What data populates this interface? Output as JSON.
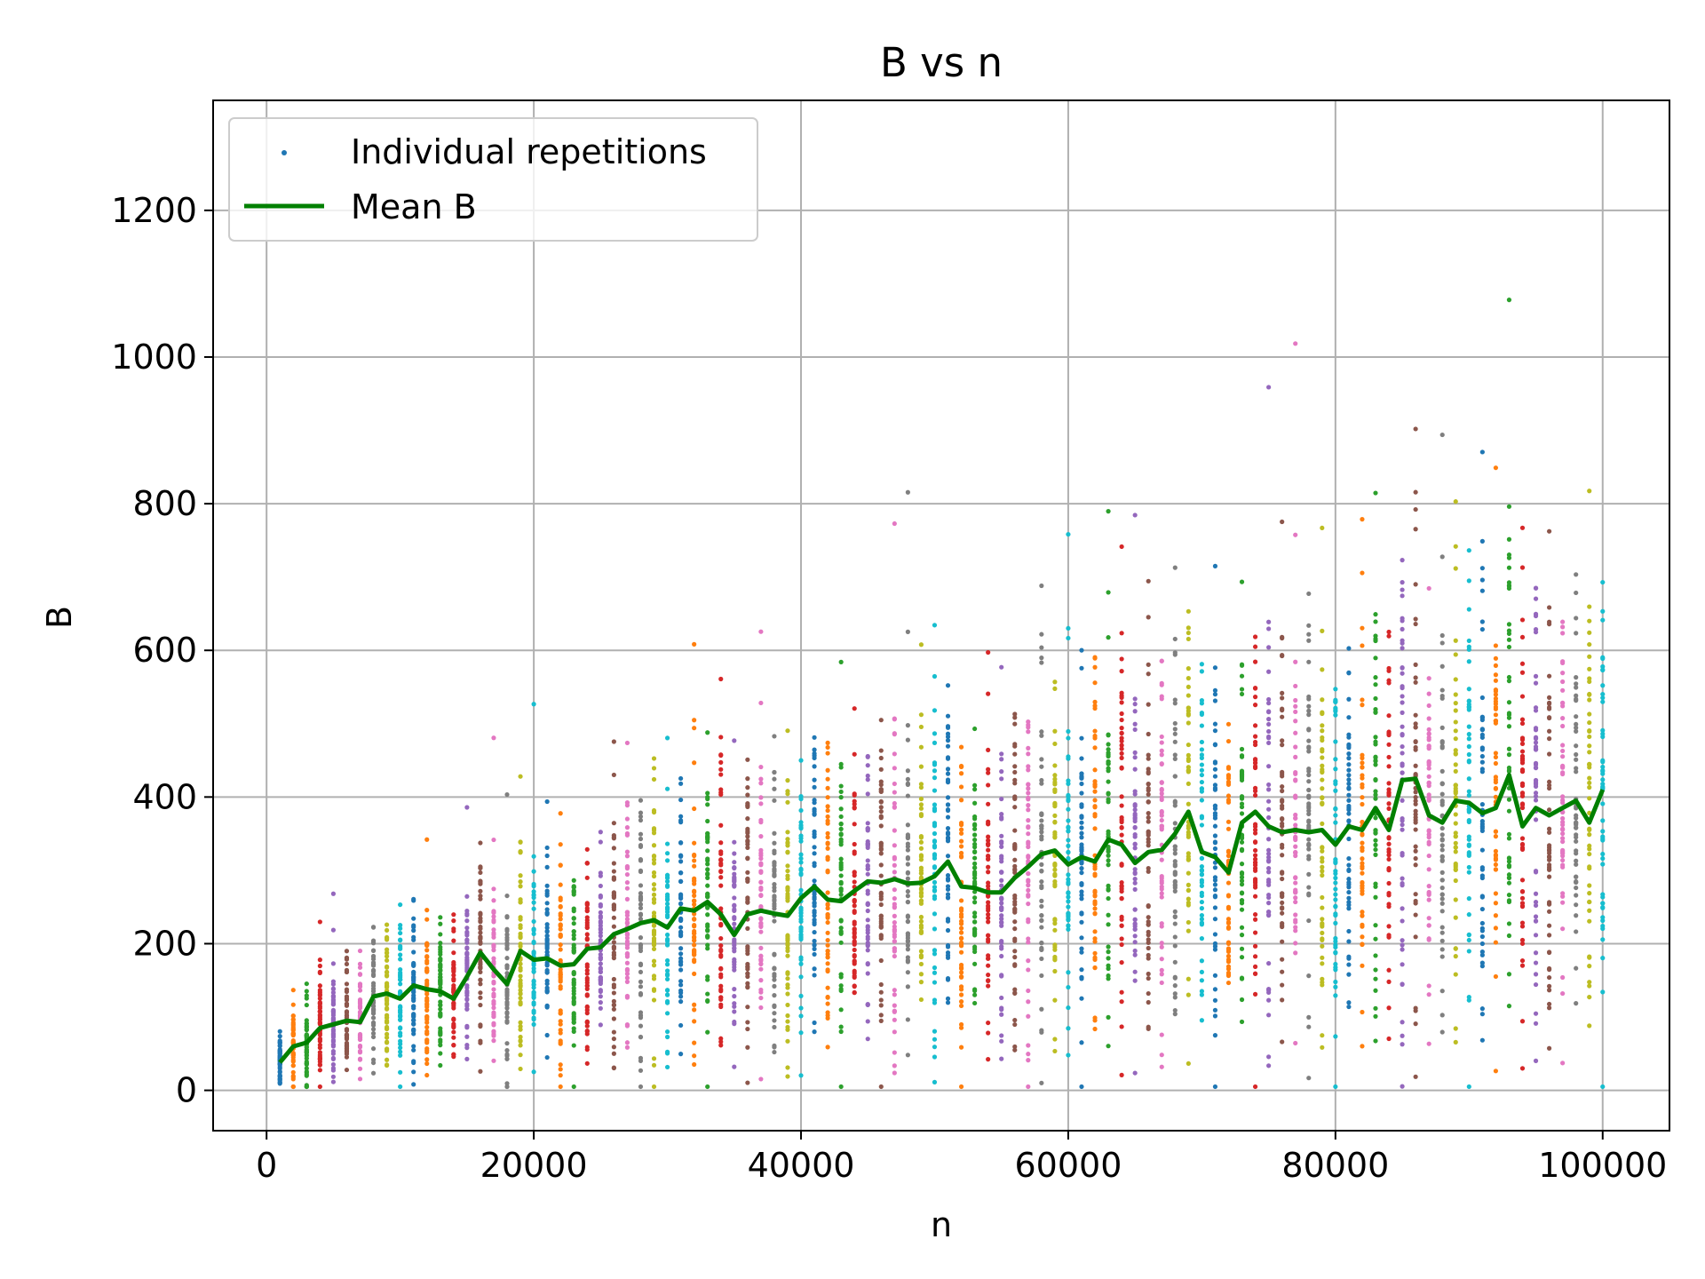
{
  "chart_data": {
    "type": "scatter",
    "title": "B vs n",
    "xlabel": "n",
    "ylabel": "B",
    "xlim": [
      -4000,
      105000
    ],
    "ylim": [
      -55,
      1350
    ],
    "xticks": [
      0,
      20000,
      40000,
      60000,
      80000,
      100000
    ],
    "yticks": [
      0,
      200,
      400,
      600,
      800,
      1000,
      1200
    ],
    "grid": true,
    "legend": {
      "placement": "top-left",
      "entries": [
        {
          "label": "Individual repetitions",
          "kind": "marker",
          "color": "#1f77b4"
        },
        {
          "label": "Mean B",
          "kind": "line",
          "color": "#008000"
        }
      ]
    },
    "scatter_palette": [
      "#1f77b4",
      "#ff7f0e",
      "#2ca02c",
      "#d62728",
      "#9467bd",
      "#8c564b",
      "#e377c2",
      "#7f7f7f",
      "#bcbd22",
      "#17becf"
    ],
    "scatter_x": {
      "start": 1000,
      "stop": 100000,
      "step": 1000,
      "repetitions_per_n": 50
    },
    "series": [
      {
        "name": "Mean B",
        "color": "#008000",
        "x": [
          1000,
          2000,
          3000,
          4000,
          5000,
          6000,
          7000,
          8000,
          9000,
          10000,
          11000,
          12000,
          13000,
          14000,
          15000,
          16000,
          17000,
          18000,
          19000,
          20000,
          21000,
          22000,
          23000,
          24000,
          25000,
          26000,
          27000,
          28000,
          29000,
          30000,
          31000,
          32000,
          33000,
          34000,
          35000,
          36000,
          37000,
          38000,
          39000,
          40000,
          41000,
          42000,
          43000,
          44000,
          45000,
          46000,
          47000,
          48000,
          49000,
          50000,
          51000,
          52000,
          53000,
          54000,
          55000,
          56000,
          57000,
          58000,
          59000,
          60000,
          61000,
          62000,
          63000,
          64000,
          65000,
          66000,
          67000,
          68000,
          69000,
          70000,
          71000,
          72000,
          73000,
          74000,
          75000,
          76000,
          77000,
          78000,
          79000,
          80000,
          81000,
          82000,
          83000,
          84000,
          85000,
          86000,
          87000,
          88000,
          89000,
          90000,
          91000,
          92000,
          93000,
          94000,
          95000,
          96000,
          97000,
          98000,
          99000,
          100000
        ],
        "y": [
          38,
          60,
          65,
          85,
          90,
          95,
          93,
          128,
          132,
          125,
          143,
          138,
          135,
          125,
          155,
          188,
          165,
          145,
          190,
          178,
          180,
          170,
          172,
          193,
          195,
          213,
          220,
          228,
          232,
          222,
          248,
          245,
          257,
          240,
          212,
          240,
          245,
          241,
          238,
          262,
          278,
          260,
          258,
          272,
          285,
          283,
          288,
          282,
          283,
          292,
          312,
          278,
          276,
          270,
          270,
          290,
          305,
          322,
          327,
          308,
          318,
          312,
          342,
          335,
          310,
          325,
          328,
          350,
          380,
          325,
          318,
          297,
          365,
          380,
          360,
          352,
          355,
          352,
          355,
          335,
          360,
          355,
          385,
          355,
          423,
          425,
          375,
          365,
          395,
          392,
          378,
          385,
          430,
          360,
          385,
          375,
          385,
          395,
          365,
          410
        ]
      }
    ]
  }
}
